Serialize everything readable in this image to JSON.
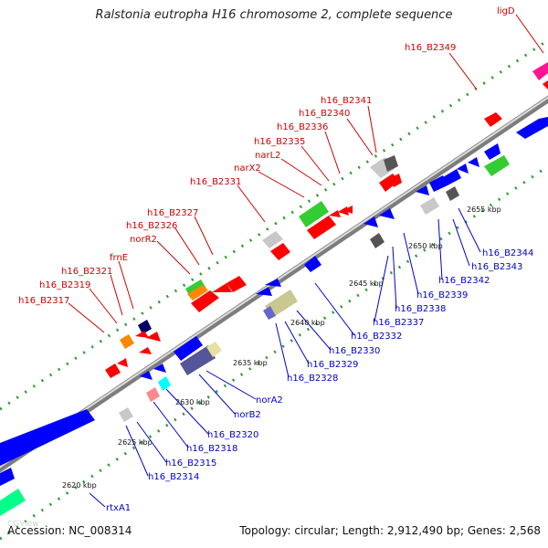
{
  "title": "Ralstonia eutropha H16 chromosome 2, complete sequence",
  "footer": {
    "accession": "Accession: NC_008314",
    "info": "Topology: circular; Length: 2,912,490 bp; Genes: 2,568",
    "watermark": "CGView"
  },
  "colors": {
    "forward_label": "#cc0000",
    "reverse_label": "#0000cc",
    "forward_cds": "#ff0000",
    "reverse_cds": "#0000ff",
    "backbone": "#888888",
    "tick": "#2a9a2a"
  },
  "ticks": [
    "2620 kbp",
    "2625 kbp",
    "2630 kbp",
    "2635 kbp",
    "2640 kbp",
    "2645 kbp",
    "2650 kbp",
    "2655 kbp"
  ],
  "forward_labels": [
    "ligD",
    "h16_B2349",
    "h16_B2341",
    "h16_B2340",
    "h16_B2336",
    "h16_B2335",
    "narL2",
    "narX2",
    "h16_B2331",
    "h16_B2327",
    "h16_B2326",
    "norR2",
    "frnE",
    "h16_B2321",
    "h16_B2319",
    "h16_B2317"
  ],
  "reverse_labels": [
    "h16_B2344",
    "h16_B2343",
    "h16_B2342",
    "h16_B2339",
    "h16_B2338",
    "h16_B2337",
    "h16_B2332",
    "h16_B2330",
    "h16_B2329",
    "h16_B2328",
    "norA2",
    "norB2",
    "h16_B2320",
    "h16_B2318",
    "h16_B2315",
    "h16_B2314",
    "rtxA1"
  ]
}
